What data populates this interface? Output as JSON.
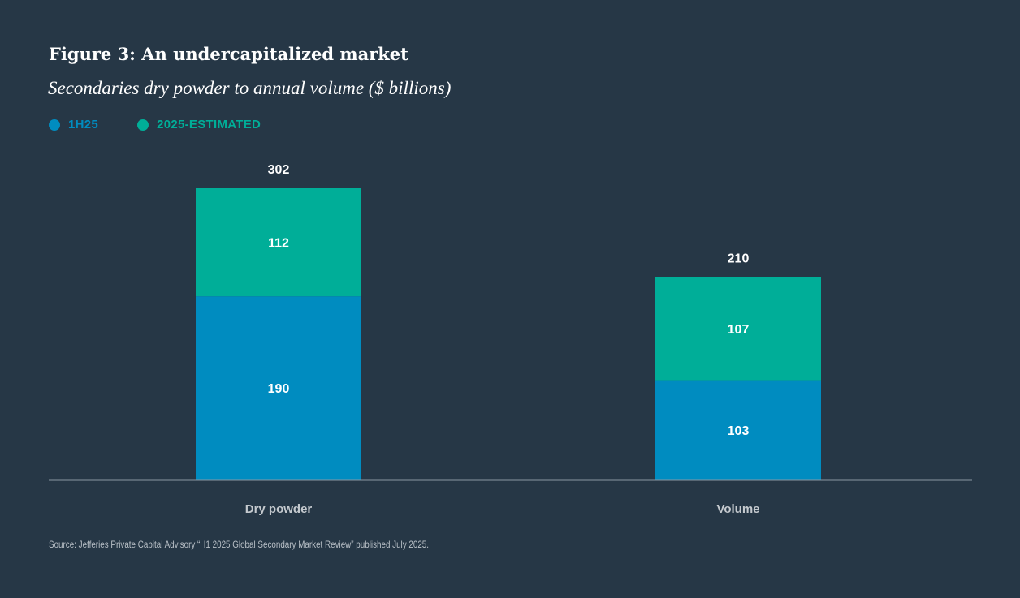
{
  "chart_data": {
    "type": "bar",
    "stacked": true,
    "title": "Figure 3: An undercapitalized market",
    "subtitle": "Secondaries dry powder to annual volume ($ billions)",
    "categories": [
      "Dry powder",
      "Volume"
    ],
    "series": [
      {
        "name": "1H25",
        "values": [
          190,
          103
        ],
        "color": "#008cc0"
      },
      {
        "name": "2025-ESTIMATED",
        "values": [
          112,
          107
        ],
        "color": "#00ae98"
      }
    ],
    "totals": [
      302,
      210
    ],
    "ylim": [
      0,
      302
    ],
    "grid": false,
    "legend_placement": "top-left",
    "xlabel": "",
    "ylabel": ""
  },
  "source": "Source: Jefferies Private Capital Advisory “H1 2025 Global Secondary Market Review” published July 2025."
}
